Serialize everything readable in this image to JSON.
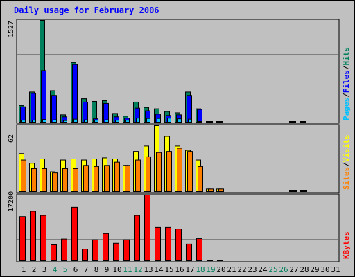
{
  "title": "Daily usage for February 2006",
  "colors": {
    "background": "#c0c0c0",
    "plot": "#c0c0c0",
    "hits": "#00805c",
    "files": "#0000ff",
    "pages": "#00c0ff",
    "visits": "#ffff00",
    "sites": "#ff8000",
    "kbytes": "#ff0000",
    "title": "#0000ff"
  },
  "chart_data": [
    {
      "type": "bar",
      "panel": "hits-files-pages",
      "ymax_label": "1527",
      "ylim": [
        0,
        1527
      ],
      "legend": [
        {
          "text": "Pages",
          "color": "#00c0ff"
        },
        {
          "text": "/",
          "color": "#000000"
        },
        {
          "text": "Files",
          "color": "#0000ff"
        },
        {
          "text": "/",
          "color": "#000000"
        },
        {
          "text": "Hits",
          "color": "#00805c"
        }
      ],
      "categories": [
        "1",
        "2",
        "3",
        "4",
        "5",
        "6",
        "7",
        "8",
        "9",
        "10",
        "11",
        "12",
        "13",
        "14",
        "15",
        "16",
        "17",
        "18",
        "19",
        "20",
        "21",
        "22",
        "23",
        "24",
        "25",
        "26",
        "27",
        "28",
        "29",
        "30",
        "31"
      ],
      "series": [
        {
          "name": "Hits",
          "values": [
            260,
            460,
            1527,
            480,
            120,
            900,
            360,
            320,
            330,
            140,
            100,
            310,
            230,
            210,
            170,
            150,
            460,
            210,
            0,
            0,
            null,
            null,
            null,
            null,
            null,
            null,
            0,
            0,
            null,
            null,
            null
          ]
        },
        {
          "name": "Files",
          "values": [
            240,
            440,
            780,
            410,
            90,
            870,
            310,
            60,
            290,
            90,
            70,
            220,
            180,
            130,
            110,
            120,
            410,
            200,
            0,
            0,
            null,
            null,
            null,
            null,
            null,
            null,
            0,
            0,
            null,
            null,
            null
          ]
        },
        {
          "name": "Pages",
          "values": [
            40,
            40,
            50,
            45,
            35,
            55,
            45,
            40,
            45,
            40,
            40,
            70,
            65,
            65,
            70,
            60,
            55,
            0,
            0,
            0,
            null,
            null,
            null,
            null,
            null,
            null,
            0,
            0,
            null,
            null,
            null
          ]
        }
      ]
    },
    {
      "type": "bar",
      "panel": "visits-sites",
      "ymax_label": "62",
      "ylim": [
        0,
        62
      ],
      "legend": [
        {
          "text": "Sites",
          "color": "#ff8000"
        },
        {
          "text": "/",
          "color": "#000000"
        },
        {
          "text": "Visits",
          "color": "#ffff00"
        }
      ],
      "categories": [
        "1",
        "2",
        "3",
        "4",
        "5",
        "6",
        "7",
        "8",
        "9",
        "10",
        "11",
        "12",
        "13",
        "14",
        "15",
        "16",
        "17",
        "18",
        "19",
        "20",
        "21",
        "22",
        "23",
        "24",
        "25",
        "26",
        "27",
        "28",
        "29",
        "30",
        "31"
      ],
      "series": [
        {
          "name": "Visits",
          "values": [
            36,
            27,
            31,
            19,
            30,
            31,
            30,
            31,
            32,
            31,
            25,
            38,
            43,
            62,
            52,
            43,
            39,
            30,
            3,
            3,
            null,
            null,
            null,
            null,
            null,
            null,
            1,
            1,
            null,
            null,
            null
          ]
        },
        {
          "name": "Sites",
          "values": [
            30,
            22,
            22,
            18,
            22,
            22,
            25,
            24,
            25,
            28,
            25,
            30,
            33,
            37,
            38,
            41,
            38,
            24,
            3,
            3,
            null,
            null,
            null,
            null,
            null,
            null,
            1,
            1,
            null,
            null,
            null
          ]
        }
      ]
    },
    {
      "type": "bar",
      "panel": "kbytes",
      "ymax_label": "17200",
      "ylim": [
        0,
        17200
      ],
      "legend": [
        {
          "text": "KBytes",
          "color": "#ff0000"
        }
      ],
      "categories": [
        "1",
        "2",
        "3",
        "4",
        "5",
        "6",
        "7",
        "8",
        "9",
        "10",
        "11",
        "12",
        "13",
        "14",
        "15",
        "16",
        "17",
        "18",
        "19",
        "20",
        "21",
        "22",
        "23",
        "24",
        "25",
        "26",
        "27",
        "28",
        "29",
        "30",
        "31"
      ],
      "series": [
        {
          "name": "KBytes",
          "values": [
            11600,
            13000,
            11900,
            4300,
            5800,
            14000,
            3200,
            5600,
            7200,
            4700,
            5600,
            11900,
            17200,
            8800,
            8800,
            8400,
            4500,
            5900,
            0,
            0,
            null,
            null,
            null,
            null,
            null,
            null,
            null,
            null,
            null,
            null,
            null
          ]
        }
      ]
    }
  ],
  "x_labels": [
    {
      "text": "1",
      "color": "#000000"
    },
    {
      "text": "2",
      "color": "#000000"
    },
    {
      "text": "3",
      "color": "#000000"
    },
    {
      "text": "4",
      "color": "#00805c"
    },
    {
      "text": "5",
      "color": "#00805c"
    },
    {
      "text": "6",
      "color": "#000000"
    },
    {
      "text": "7",
      "color": "#000000"
    },
    {
      "text": "8",
      "color": "#000000"
    },
    {
      "text": "9",
      "color": "#000000"
    },
    {
      "text": "10",
      "color": "#000000"
    },
    {
      "text": "11",
      "color": "#00805c"
    },
    {
      "text": "12",
      "color": "#00805c"
    },
    {
      "text": "13",
      "color": "#000000"
    },
    {
      "text": "14",
      "color": "#000000"
    },
    {
      "text": "15",
      "color": "#000000"
    },
    {
      "text": "16",
      "color": "#000000"
    },
    {
      "text": "17",
      "color": "#000000"
    },
    {
      "text": "18",
      "color": "#00805c"
    },
    {
      "text": "19",
      "color": "#00805c"
    },
    {
      "text": "20",
      "color": "#000000"
    },
    {
      "text": "21",
      "color": "#000000"
    },
    {
      "text": "22",
      "color": "#000000"
    },
    {
      "text": "23",
      "color": "#000000"
    },
    {
      "text": "24",
      "color": "#000000"
    },
    {
      "text": "25",
      "color": "#00805c"
    },
    {
      "text": "26",
      "color": "#00805c"
    },
    {
      "text": "27",
      "color": "#000000"
    },
    {
      "text": "28",
      "color": "#000000"
    },
    {
      "text": "29",
      "color": "#000000"
    },
    {
      "text": "30",
      "color": "#000000"
    },
    {
      "text": "31",
      "color": "#000000"
    }
  ]
}
